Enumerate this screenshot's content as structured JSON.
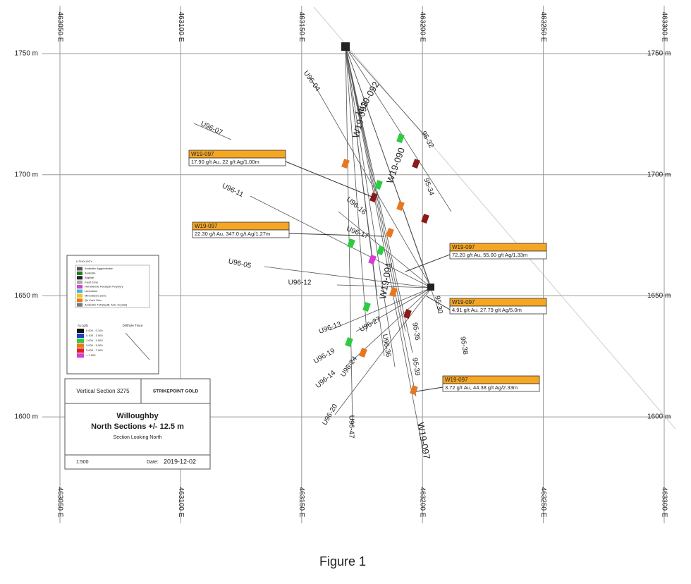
{
  "grid": {
    "eastings": [
      "463050 E",
      "463100 E",
      "463150 E",
      "463200 E",
      "463250 E",
      "463300 E"
    ],
    "elevations": [
      "1750 m",
      "1700 m",
      "1650 m",
      "1600 m"
    ]
  },
  "holes": [
    "U96-04",
    "U96-07",
    "U96-11",
    "U96-05",
    "U96-12",
    "U96-16",
    "U96-17",
    "U96-13",
    "U96-19",
    "U96-14",
    "U96-24",
    "U96-20",
    "U96-47",
    "U96-27",
    "U96-36",
    "95-35",
    "95-39",
    "95-38",
    "95-30",
    "95-34",
    "95-32",
    "W19-092",
    "W19-093",
    "W19-090",
    "W19-091",
    "W19-097"
  ],
  "callouts": [
    {
      "title": "W19-097",
      "text": "17.90 g/t Au, 22 g/t Ag/1.00m"
    },
    {
      "title": "W19-097",
      "text": "22.30 g/t Au, 347.0 g/t Ag/1.27m"
    },
    {
      "title": "W19-097",
      "text": "72.20 g/t Au, 55.00 g/t Ag/1.33m"
    },
    {
      "title": "W19-097",
      "text": "4.91 g/t Au, 27.79 g/t Ag/5.0m"
    },
    {
      "title": "W19-097",
      "text": "3.72 g/t Au, 44.38 g/t Ag/2.33m"
    }
  ],
  "legend": {
    "title": "LITHOLOGY",
    "items": [
      "Andesitic Agglomerate",
      "Andesite",
      "Argillite",
      "Fault Zone",
      "Hornblende Feldspar Porphyry",
      "Limestone",
      "Mineralized Zone",
      "Qz Carb Vein",
      "Andesitic Tuff (lapilli, Ash, Crystal)"
    ],
    "au_title": "Au (g/t)",
    "au_items": [
      "0.000 - 0.100",
      "0.100 - 1.000",
      "1.000 - 3.000",
      "3.000 - 5.000",
      "5.000 - 7.000",
      "> 7.000"
    ],
    "trace": "Drillhole Trace"
  },
  "title_block": {
    "section": "Vertical Section 3275",
    "logo": "STRIKEPOINT GOLD",
    "title": "Willoughby",
    "subtitle": "North Sections +/- 12.5 m",
    "looking": "Section Looking North",
    "scale": "1:500",
    "date_label": "Date:",
    "date": "2019-12-02"
  },
  "caption": "Figure 1"
}
